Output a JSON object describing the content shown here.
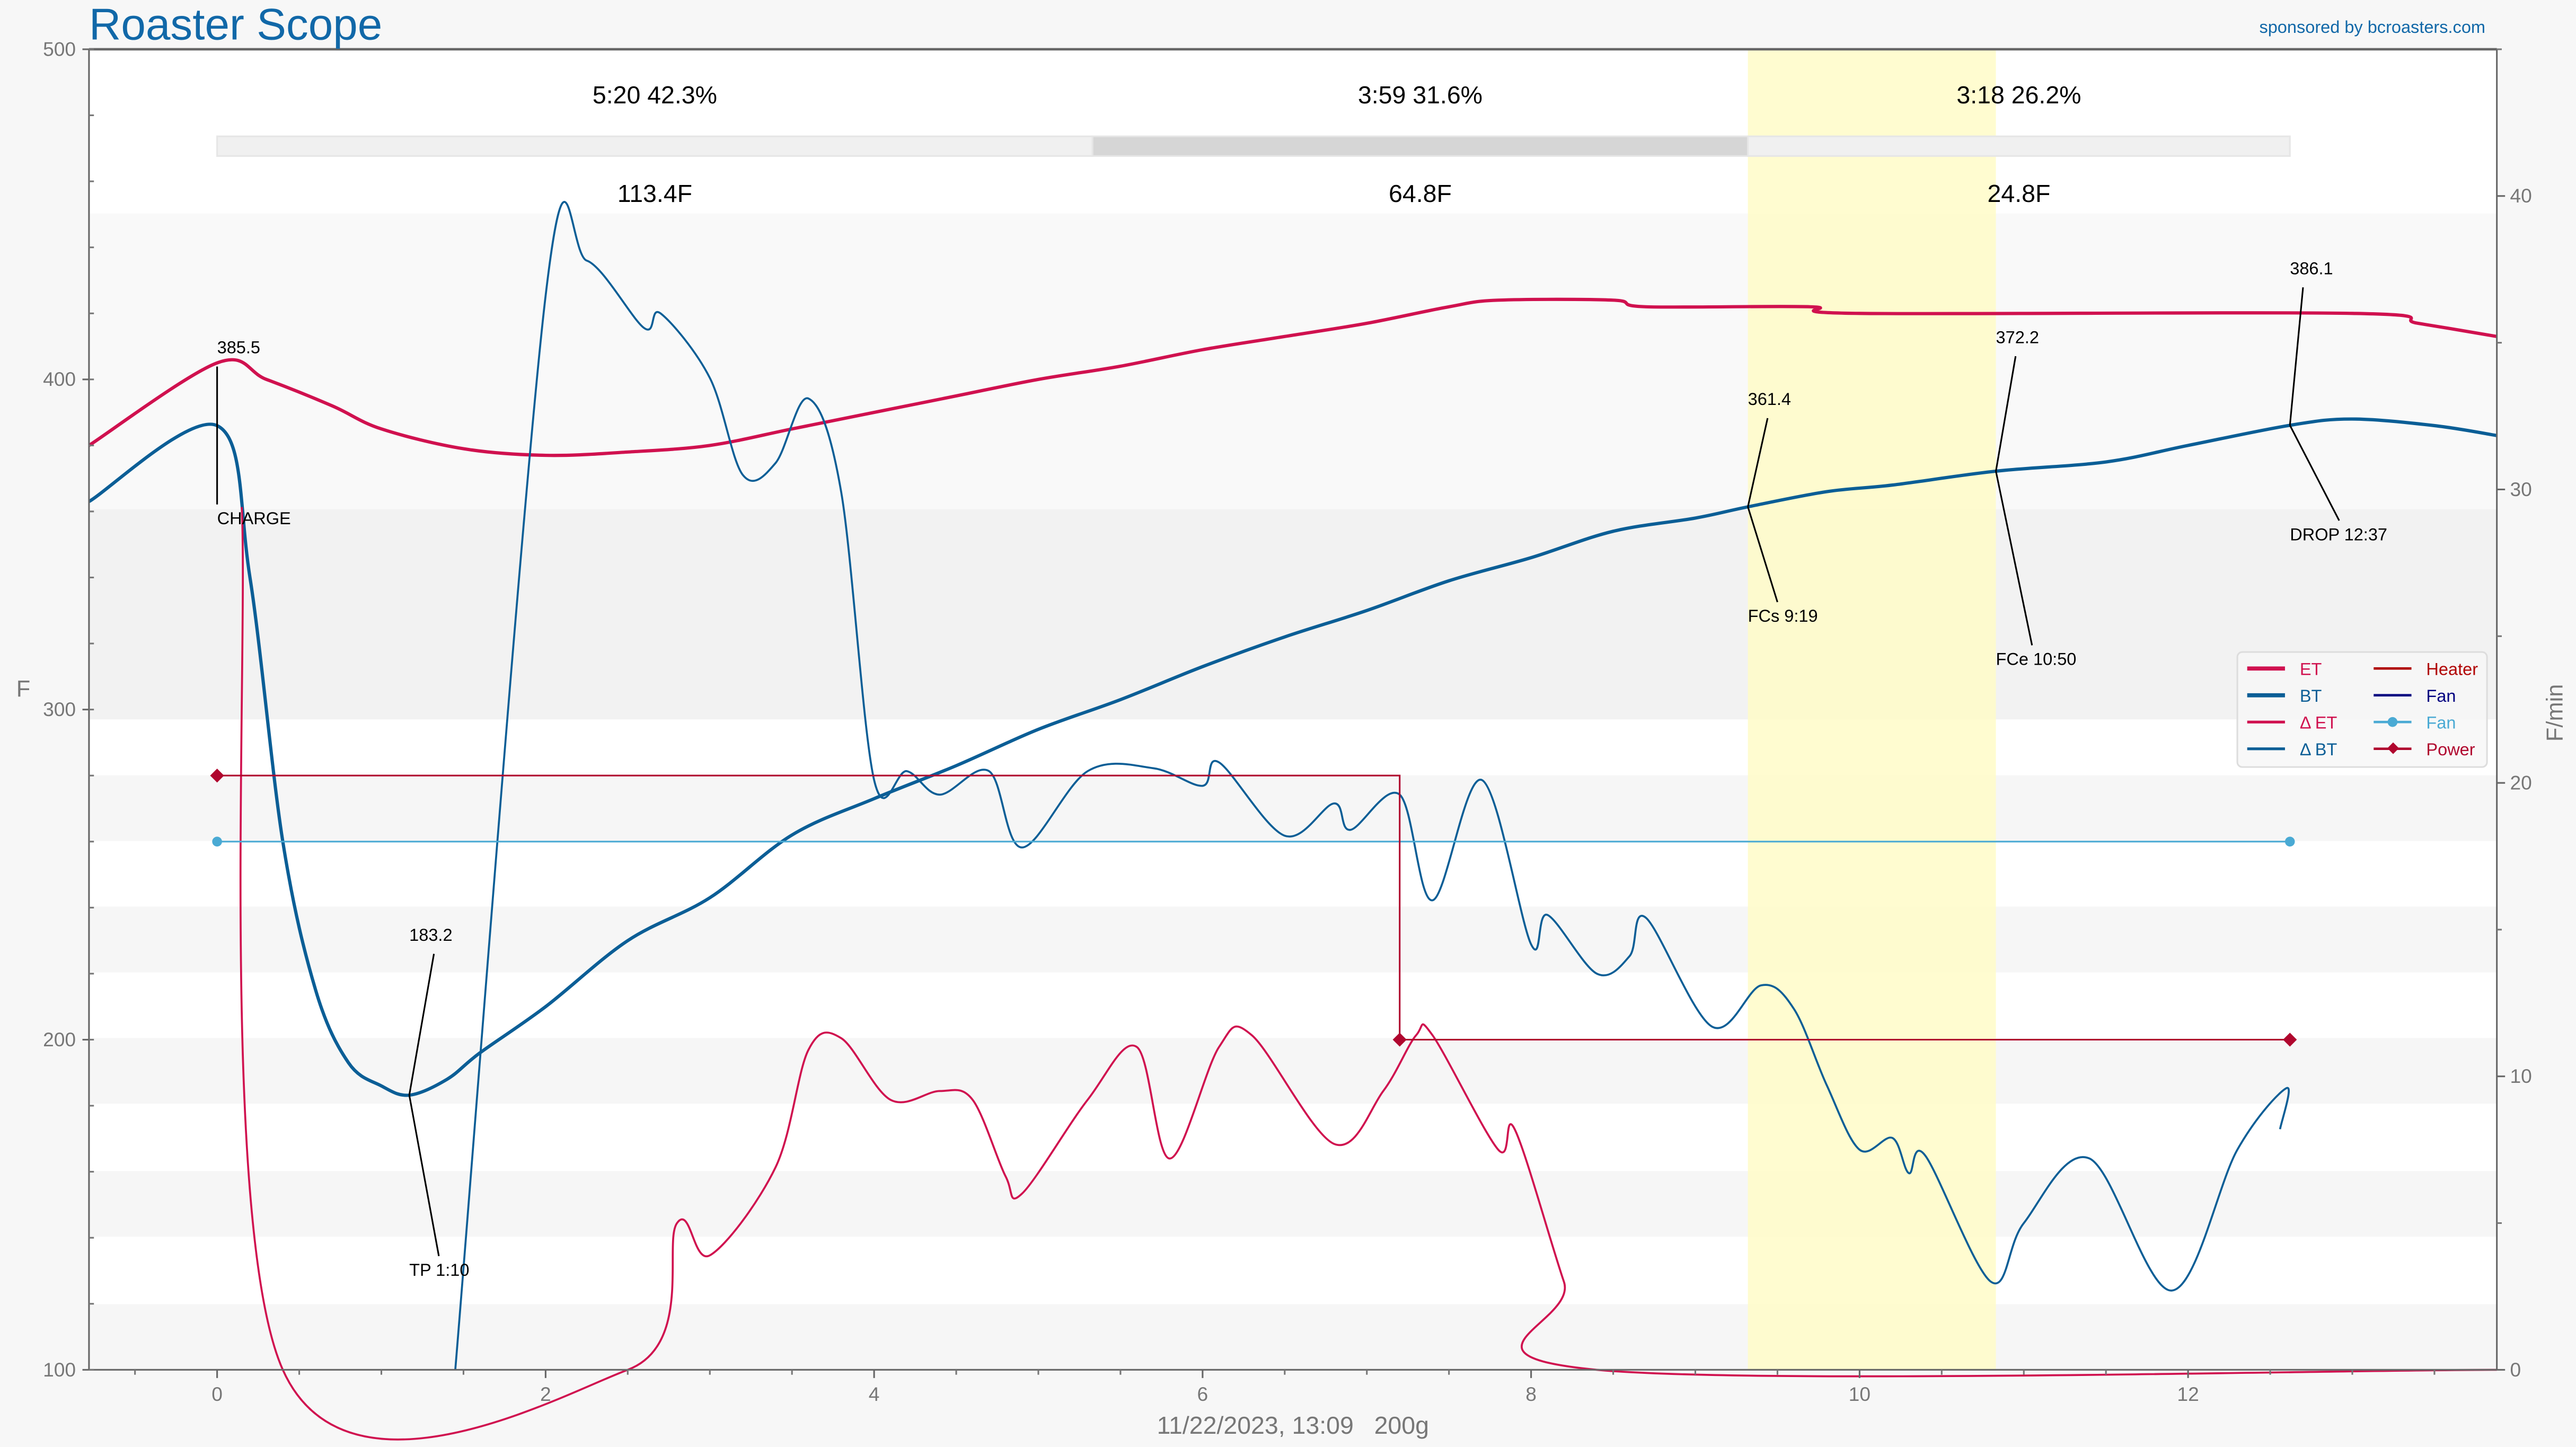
{
  "header": {
    "title": "Roaster Scope",
    "sponsor": "sponsored by bcroasters.com"
  },
  "footer": {
    "caption": "11/22/2023, 13:09   200g"
  },
  "colors": {
    "et": "#d0114f",
    "bt": "#0b5e96",
    "heater": "#b00000",
    "fan_line": "#000080",
    "fan": "#4aaad4",
    "power": "#b0062e",
    "highlight": "#fffbc8",
    "title": "#1168a8"
  },
  "chart_data": {
    "type": "line",
    "title": "Roaster Scope",
    "xlabel": "11/22/2023, 13:09   200g",
    "ylabel": "F",
    "y2label": "F/min",
    "xlim": [
      -0.78,
      13.88
    ],
    "ylim": [
      100,
      500
    ],
    "y2lim": [
      0,
      45
    ],
    "xticks": [
      0,
      2,
      4,
      6,
      8,
      10,
      12
    ],
    "yticks": [
      100,
      200,
      300,
      400,
      500
    ],
    "y2ticks": [
      0,
      10,
      20,
      30,
      40
    ],
    "phases": [
      {
        "label": "5:20  42.3%",
        "delta": "113.4F",
        "start": 0,
        "end": 5.33
      },
      {
        "label": "3:59  31.6%",
        "delta": "64.8F",
        "start": 5.33,
        "end": 9.32
      },
      {
        "label": "3:18  26.2%",
        "delta": "24.8F",
        "start": 9.32,
        "end": 12.62
      }
    ],
    "highlight": [
      9.32,
      10.83
    ],
    "legend": {
      "placement": "right",
      "entries": [
        "ET",
        "BT",
        "Δ ET",
        "Δ BT",
        "Heater",
        "Fan",
        "Fan",
        "Power"
      ]
    },
    "series": [
      {
        "name": "ET",
        "axis": "left",
        "x": [
          -0.78,
          0,
          0.3,
          0.7,
          1,
          1.5,
          2,
          2.5,
          3,
          3.5,
          4,
          4.5,
          5,
          5.5,
          6,
          6.5,
          7,
          7.5,
          7.8,
          8.5,
          8.7,
          9.7,
          10,
          13,
          13.4,
          13.88
        ],
        "y": [
          380,
          405,
          400,
          392,
          385,
          379,
          377,
          378,
          380,
          385,
          390,
          395,
          400,
          404,
          409,
          413,
          417,
          422,
          424,
          424,
          422,
          422,
          420,
          420,
          417,
          413
        ]
      },
      {
        "name": "BT",
        "axis": "left",
        "x": [
          -0.78,
          0,
          0.2,
          0.4,
          0.6,
          0.8,
          1,
          1.17,
          1.4,
          1.6,
          2,
          2.5,
          3,
          3.5,
          4,
          4.5,
          5,
          5.5,
          6,
          6.5,
          7,
          7.5,
          8,
          8.5,
          9,
          9.32,
          9.8,
          10.2,
          10.83,
          11.5,
          12,
          12.62,
          13,
          13.5,
          13.88
        ],
        "y": [
          363,
          386,
          340,
          260,
          215,
          193,
          186,
          183.2,
          188,
          196,
          210,
          230,
          243,
          262,
          273,
          283,
          294,
          303,
          313,
          322,
          330,
          339,
          346,
          354,
          358,
          361.4,
          366,
          368,
          372.2,
          375,
          380,
          386.1,
          388,
          386,
          383
        ]
      },
      {
        "name": "Δ ET",
        "axis": "right",
        "x": [
          0.15,
          0.4,
          2.5,
          2.8,
          3,
          3.4,
          3.6,
          3.8,
          4.1,
          4.4,
          4.6,
          4.8,
          4.9,
          5.3,
          5.6,
          5.8,
          6.1,
          6.3,
          6.8,
          7.1,
          7.3,
          7.4,
          7.8,
          7.9,
          8.2,
          8.4,
          13.88
        ],
        "y": [
          29.4,
          0,
          0,
          5,
          3.9,
          6.9,
          10.9,
          11.3,
          9.2,
          9.5,
          9.2,
          6.6,
          6,
          9.2,
          11,
          7.2,
          11,
          11.4,
          7.7,
          9.5,
          11.4,
          11.4,
          7.5,
          8.2,
          3,
          0,
          0
        ]
      },
      {
        "name": "Δ BT",
        "axis": "right",
        "x": [
          1.45,
          2,
          2.25,
          2.6,
          2.7,
          3,
          3.2,
          3.4,
          3.6,
          3.8,
          4,
          4.2,
          4.4,
          4.7,
          4.9,
          5.3,
          5.7,
          6,
          6.1,
          6.5,
          6.8,
          6.9,
          7.2,
          7.4,
          7.7,
          8,
          8.1,
          8.4,
          8.6,
          8.7,
          9.1,
          9.4,
          9.6,
          9.8,
          10,
          10.2,
          10.3,
          10.4,
          10.8,
          11,
          11.4,
          11.9,
          12.3,
          12.6,
          12.56
        ],
        "y": [
          0,
          36.6,
          37.8,
          35.5,
          36,
          33.8,
          30.5,
          30.9,
          33.1,
          29.9,
          20.1,
          20.4,
          19.6,
          20.4,
          17.8,
          20.4,
          20.5,
          19.9,
          20.7,
          18.2,
          19.3,
          18.4,
          19.6,
          16,
          20.1,
          14.5,
          15.5,
          13.5,
          14.1,
          15.4,
          11.7,
          13.1,
          12.3,
          9.7,
          7.5,
          7.9,
          6.7,
          7.3,
          3,
          5,
          7.2,
          2.7,
          7.5,
          9.6,
          8.2
        ]
      },
      {
        "name": "Heater",
        "axis": "left",
        "step": true,
        "x": [
          0,
          7.2,
          12.62
        ],
        "y": [
          280,
          200,
          200
        ]
      },
      {
        "name": "Fan",
        "axis": "left",
        "x": [
          0,
          12.62
        ],
        "y": [
          260,
          260
        ]
      },
      {
        "name": "Power",
        "axis": "left",
        "x": [
          0,
          7.2,
          12.62
        ],
        "y": [
          280,
          200,
          200
        ]
      }
    ],
    "annotations": [
      {
        "value": "385.5",
        "label": "CHARGE",
        "x": 0,
        "y": 386
      },
      {
        "value": "183.2",
        "label": "TP 1:10",
        "x": 1.17,
        "y": 183.2
      },
      {
        "value": "361.4",
        "label": "FCs 9:19",
        "x": 9.32,
        "y": 361.4
      },
      {
        "value": "372.2",
        "label": "FCe 10:50",
        "x": 10.83,
        "y": 372.2
      },
      {
        "value": "386.1",
        "label": "DROP 12:37",
        "x": 12.62,
        "y": 386.1
      }
    ]
  }
}
